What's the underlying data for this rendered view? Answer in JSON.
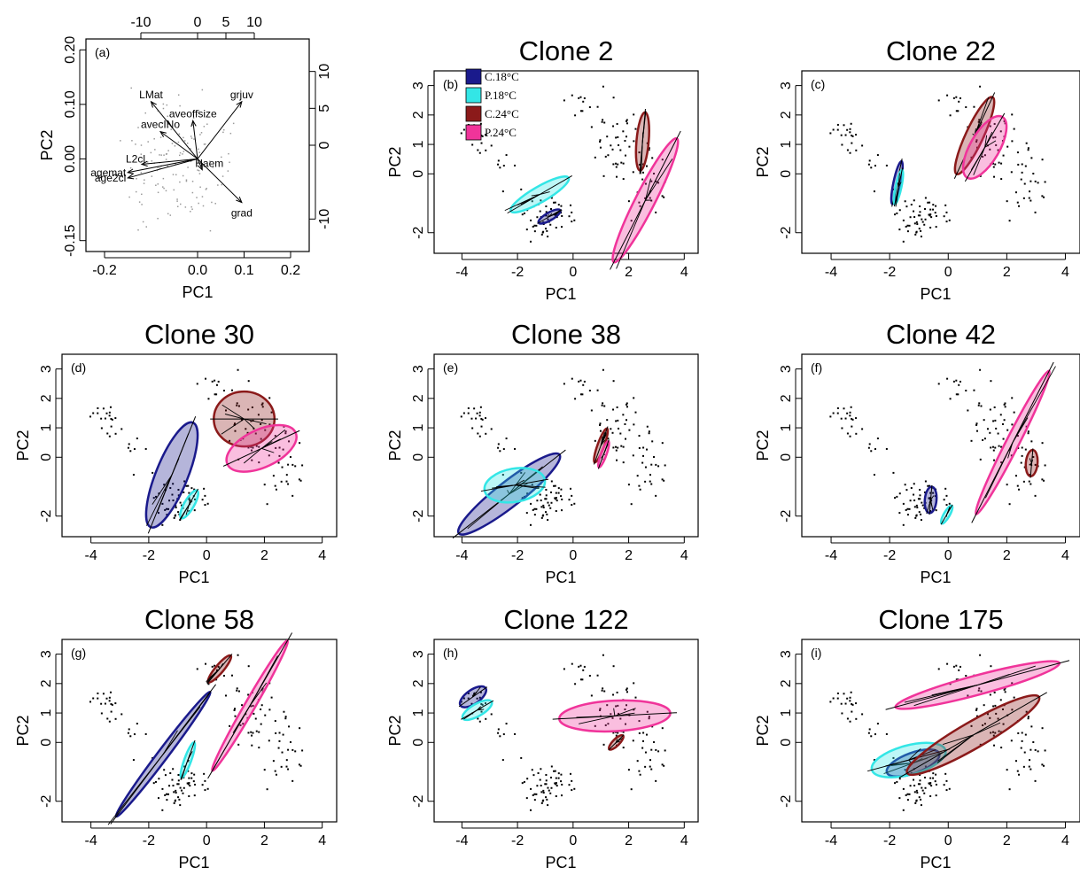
{
  "colors": {
    "C18": "#1a1a8c",
    "P18": "#33e6e6",
    "C24": "#8b1a1a",
    "P24": "#f0349a"
  },
  "legend": [
    {
      "key": "C18",
      "label": "C.18°C"
    },
    {
      "key": "P18",
      "label": "P.18°C"
    },
    {
      "key": "C24",
      "label": "C.24°C"
    },
    {
      "key": "P24",
      "label": "P.24°C"
    }
  ],
  "chart_data": [
    {
      "type": "scatter",
      "variant": "biplot",
      "panel": "(a)",
      "title": "",
      "xlabel": "PC1",
      "ylabel": "PC2",
      "xticks": [
        "-0.2",
        "0.0",
        "0.1",
        "0.2"
      ],
      "yticks": [
        "-0.15",
        "0.00",
        "0.10",
        "0.20"
      ],
      "top_ticks": [
        "-10",
        "0",
        "5",
        "10"
      ],
      "right_ticks": [
        "-10",
        "0",
        "5",
        "10"
      ],
      "xlim": [
        -0.24,
        0.24
      ],
      "ylim": [
        -0.17,
        0.22
      ],
      "vectors": [
        {
          "label": "LMat",
          "x": -0.1,
          "y": 0.105
        },
        {
          "label": "grjuv",
          "x": 0.095,
          "y": 0.105
        },
        {
          "label": "aveoffsize",
          "x": -0.01,
          "y": 0.07
        },
        {
          "label": "avecINo",
          "x": -0.08,
          "y": 0.05
        },
        {
          "label": "L2cl",
          "x": -0.12,
          "y": -0.01
        },
        {
          "label": "agemat",
          "x": -0.15,
          "y": -0.025
        },
        {
          "label": "age2cl",
          "x": -0.15,
          "y": -0.035
        },
        {
          "label": "Haem",
          "x": 0.01,
          "y": -0.02
        },
        {
          "label": "grad",
          "x": 0.095,
          "y": -0.08
        }
      ]
    },
    {
      "type": "scatter",
      "panel": "(b)",
      "title": "Clone 2",
      "xlabel": "PC1",
      "ylabel": "PC2",
      "xticks": [
        "-4",
        "-2",
        "0",
        "2",
        "4"
      ],
      "yticks": [
        "-2",
        "0",
        "1",
        "2",
        "3"
      ],
      "xlim": [
        -5,
        4.5
      ],
      "ylim": [
        -2.7,
        3.5
      ],
      "ellipses": [
        {
          "group": "C18",
          "cx": -0.85,
          "cy": -1.45,
          "rx": 0.45,
          "ry": 0.14,
          "angle_deg": -30
        },
        {
          "group": "P18",
          "cx": -1.2,
          "cy": -0.7,
          "rx": 1.2,
          "ry": 0.28,
          "angle_deg": -30
        },
        {
          "group": "C24",
          "cx": 2.5,
          "cy": 1.1,
          "rx": 1.05,
          "ry": 0.22,
          "angle_deg": -85
        },
        {
          "group": "P24",
          "cx": 2.6,
          "cy": -0.9,
          "rx": 2.5,
          "ry": 0.35,
          "angle_deg": -63
        }
      ]
    },
    {
      "type": "scatter",
      "panel": "(c)",
      "title": "Clone 22",
      "xlabel": "PC1",
      "ylabel": "PC2",
      "xticks": [
        "-4",
        "-2",
        "0",
        "2",
        "4"
      ],
      "yticks": [
        "-2",
        "0",
        "1",
        "2",
        "3"
      ],
      "xlim": [
        -5,
        4.5
      ],
      "ylim": [
        -2.7,
        3.5
      ],
      "ellipses": [
        {
          "group": "C18",
          "cx": -1.75,
          "cy": -0.3,
          "rx": 0.75,
          "ry": 0.12,
          "angle_deg": -78
        },
        {
          "group": "P18",
          "cx": -1.7,
          "cy": -0.45,
          "rx": 0.6,
          "ry": 0.1,
          "angle_deg": -78
        },
        {
          "group": "C24",
          "cx": 0.9,
          "cy": 1.3,
          "rx": 1.45,
          "ry": 0.3,
          "angle_deg": -65
        },
        {
          "group": "P24",
          "cx": 1.25,
          "cy": 0.9,
          "rx": 1.2,
          "ry": 0.5,
          "angle_deg": -60
        }
      ]
    },
    {
      "type": "scatter",
      "panel": "(d)",
      "title": "Clone 30",
      "xlabel": "PC1",
      "ylabel": "PC2",
      "xticks": [
        "-4",
        "-2",
        "0",
        "2",
        "4"
      ],
      "yticks": [
        "-2",
        "0",
        "1",
        "2",
        "3"
      ],
      "xlim": [
        -5,
        4.5
      ],
      "ylim": [
        -2.7,
        3.5
      ],
      "ellipses": [
        {
          "group": "C18",
          "cx": -1.2,
          "cy": -0.6,
          "rx": 1.95,
          "ry": 0.55,
          "angle_deg": -68
        },
        {
          "group": "P18",
          "cx": -0.6,
          "cy": -1.6,
          "rx": 0.55,
          "ry": 0.17,
          "angle_deg": -60
        },
        {
          "group": "C24",
          "cx": 1.3,
          "cy": 1.3,
          "rx": 1.05,
          "ry": 0.95,
          "angle_deg": 0
        },
        {
          "group": "P24",
          "cx": 1.9,
          "cy": 0.3,
          "rx": 1.3,
          "ry": 0.65,
          "angle_deg": -25
        }
      ]
    },
    {
      "type": "scatter",
      "panel": "(e)",
      "title": "Clone 38",
      "xlabel": "PC1",
      "ylabel": "PC2",
      "xticks": [
        "-4",
        "-2",
        "0",
        "2",
        "4"
      ],
      "yticks": [
        "-2",
        "0",
        "1",
        "2",
        "3"
      ],
      "xlim": [
        -5,
        4.5
      ],
      "ylim": [
        -2.7,
        3.5
      ],
      "ellipses": [
        {
          "group": "C18",
          "cx": -2.3,
          "cy": -1.25,
          "rx": 2.3,
          "ry": 0.45,
          "angle_deg": -38
        },
        {
          "group": "P18",
          "cx": -2.1,
          "cy": -0.95,
          "rx": 1.1,
          "ry": 0.6,
          "angle_deg": -10
        },
        {
          "group": "C24",
          "cx": 1.0,
          "cy": 0.4,
          "rx": 0.65,
          "ry": 0.12,
          "angle_deg": -70
        },
        {
          "group": "P24",
          "cx": 1.1,
          "cy": 0.1,
          "rx": 0.5,
          "ry": 0.1,
          "angle_deg": -70
        }
      ]
    },
    {
      "type": "scatter",
      "panel": "(f)",
      "title": "Clone 42",
      "xlabel": "PC1",
      "ylabel": "PC2",
      "xticks": [
        "-4",
        "-2",
        "0",
        "2",
        "4"
      ],
      "yticks": [
        "-2",
        "0",
        "1",
        "2",
        "3"
      ],
      "xlim": [
        -5,
        4.5
      ],
      "ylim": [
        -2.7,
        3.5
      ],
      "ellipses": [
        {
          "group": "C18",
          "cx": -0.6,
          "cy": -1.45,
          "rx": 0.45,
          "ry": 0.2,
          "angle_deg": -85
        },
        {
          "group": "P18",
          "cx": -0.05,
          "cy": -1.95,
          "rx": 0.35,
          "ry": 0.1,
          "angle_deg": -60
        },
        {
          "group": "C24",
          "cx": 2.85,
          "cy": -0.2,
          "rx": 0.45,
          "ry": 0.2,
          "angle_deg": -85
        },
        {
          "group": "P24",
          "cx": 2.2,
          "cy": 0.5,
          "rx": 2.75,
          "ry": 0.22,
          "angle_deg": -63
        }
      ]
    },
    {
      "type": "scatter",
      "panel": "(g)",
      "title": "Clone 58",
      "xlabel": "PC1",
      "ylabel": "PC2",
      "xticks": [
        "-4",
        "-2",
        "0",
        "2",
        "4"
      ],
      "yticks": [
        "-2",
        "0",
        "1",
        "2",
        "3"
      ],
      "xlim": [
        -5,
        4.5
      ],
      "ylim": [
        -2.7,
        3.5
      ],
      "ellipses": [
        {
          "group": "C18",
          "cx": -1.5,
          "cy": -0.4,
          "rx": 2.7,
          "ry": 0.18,
          "angle_deg": -53
        },
        {
          "group": "P18",
          "cx": -0.65,
          "cy": -0.6,
          "rx": 0.65,
          "ry": 0.12,
          "angle_deg": -70
        },
        {
          "group": "C24",
          "cx": 0.45,
          "cy": 2.5,
          "rx": 0.6,
          "ry": 0.14,
          "angle_deg": -50
        },
        {
          "group": "P24",
          "cx": 1.5,
          "cy": 1.25,
          "rx": 2.6,
          "ry": 0.18,
          "angle_deg": -60
        }
      ]
    },
    {
      "type": "scatter",
      "panel": "(h)",
      "title": "Clone 122",
      "xlabel": "PC1",
      "ylabel": "PC2",
      "xticks": [
        "-4",
        "-2",
        "0",
        "2",
        "4"
      ],
      "yticks": [
        "-2",
        "0",
        "1",
        "2",
        "3"
      ],
      "xlim": [
        -5,
        4.5
      ],
      "ylim": [
        -2.7,
        3.5
      ],
      "ellipses": [
        {
          "group": "C18",
          "cx": -3.6,
          "cy": 1.55,
          "rx": 0.55,
          "ry": 0.25,
          "angle_deg": -35
        },
        {
          "group": "P18",
          "cx": -3.45,
          "cy": 1.1,
          "rx": 0.6,
          "ry": 0.22,
          "angle_deg": -30
        },
        {
          "group": "C24",
          "cx": 1.55,
          "cy": 0.0,
          "rx": 0.35,
          "ry": 0.12,
          "angle_deg": -45
        },
        {
          "group": "P24",
          "cx": 1.5,
          "cy": 0.9,
          "rx": 2.0,
          "ry": 0.55,
          "angle_deg": -3
        }
      ]
    },
    {
      "type": "scatter",
      "panel": "(i)",
      "title": "Clone 175",
      "xlabel": "PC1",
      "ylabel": "PC2",
      "xticks": [
        "-4",
        "-2",
        "0",
        "2",
        "4"
      ],
      "yticks": [
        "-2",
        "0",
        "1",
        "2",
        "3"
      ],
      "xlim": [
        -5,
        4.5
      ],
      "ylim": [
        -2.7,
        3.5
      ],
      "ellipses": [
        {
          "group": "C18",
          "cx": -1.2,
          "cy": -0.7,
          "rx": 0.95,
          "ry": 0.35,
          "angle_deg": -20
        },
        {
          "group": "P18",
          "cx": -1.35,
          "cy": -0.6,
          "rx": 1.3,
          "ry": 0.5,
          "angle_deg": -15
        },
        {
          "group": "C24",
          "cx": 0.85,
          "cy": 0.25,
          "rx": 2.6,
          "ry": 0.45,
          "angle_deg": -30
        },
        {
          "group": "P24",
          "cx": 1.0,
          "cy": 1.95,
          "rx": 2.9,
          "ry": 0.33,
          "angle_deg": -15
        }
      ]
    }
  ]
}
